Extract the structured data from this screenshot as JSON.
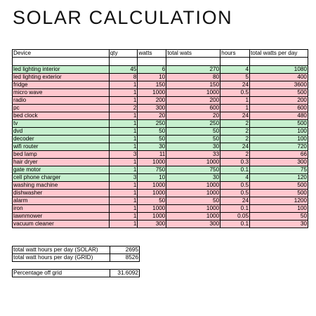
{
  "title": "SOLAR CALCULATION",
  "table": {
    "headers": {
      "device": "Device",
      "qty": "qty",
      "watts": "watts",
      "total_wats": "total wats",
      "hours": "hours",
      "total_watts_per_day": "total watts per day"
    },
    "rows": [
      {
        "device": "led lighting interior",
        "qty": "45",
        "watts": "6",
        "total": "270",
        "hours": "4",
        "per_day": "1080",
        "status": "green"
      },
      {
        "device": "led lighting exterior",
        "qty": "8",
        "watts": "10",
        "total": "80",
        "hours": "5",
        "per_day": "400",
        "status": "red"
      },
      {
        "device": "fridge",
        "qty": "1",
        "watts": "150",
        "total": "150",
        "hours": "24",
        "per_day": "3600",
        "status": "red"
      },
      {
        "device": "micro wave",
        "qty": "1",
        "watts": "1000",
        "total": "1000",
        "hours": "0.5",
        "per_day": "500",
        "status": "red"
      },
      {
        "device": "radio",
        "qty": "1",
        "watts": "200",
        "total": "200",
        "hours": "1",
        "per_day": "200",
        "status": "red"
      },
      {
        "device": "pc",
        "qty": "2",
        "watts": "300",
        "total": "600",
        "hours": "1",
        "per_day": "600",
        "status": "red"
      },
      {
        "device": "bed clock",
        "qty": "1",
        "watts": "20",
        "total": "20",
        "hours": "24",
        "per_day": "480",
        "status": "red"
      },
      {
        "device": "tv",
        "qty": "1",
        "watts": "250",
        "total": "250",
        "hours": "2",
        "per_day": "500",
        "status": "green"
      },
      {
        "device": "dvd",
        "qty": "1",
        "watts": "50",
        "total": "50",
        "hours": "2",
        "per_day": "100",
        "status": "green"
      },
      {
        "device": "decoder",
        "qty": "1",
        "watts": "50",
        "total": "50",
        "hours": "2",
        "per_day": "100",
        "status": "green"
      },
      {
        "device": "wifi router",
        "qty": "1",
        "watts": "30",
        "total": "30",
        "hours": "24",
        "per_day": "720",
        "status": "green"
      },
      {
        "device": "bed lamp",
        "qty": "3",
        "watts": "11",
        "total": "33",
        "hours": "2",
        "per_day": "66",
        "status": "red"
      },
      {
        "device": "hair dryer",
        "qty": "1",
        "watts": "1000",
        "total": "1000",
        "hours": "0.3",
        "per_day": "300",
        "status": "red"
      },
      {
        "device": "gate motor",
        "qty": "1",
        "watts": "750",
        "total": "750",
        "hours": "0.1",
        "per_day": "75",
        "status": "green"
      },
      {
        "device": "cell phone charger",
        "qty": "3",
        "watts": "10",
        "total": "30",
        "hours": "4",
        "per_day": "120",
        "status": "green"
      },
      {
        "device": "washing machine",
        "qty": "1",
        "watts": "1000",
        "total": "1000",
        "hours": "0.5",
        "per_day": "500",
        "status": "red"
      },
      {
        "device": "dishwasher",
        "qty": "1",
        "watts": "1000",
        "total": "1000",
        "hours": "0.5",
        "per_day": "500",
        "status": "red"
      },
      {
        "device": "alarm",
        "qty": "1",
        "watts": "50",
        "total": "50",
        "hours": "24",
        "per_day": "1200",
        "status": "red"
      },
      {
        "device": "iron",
        "qty": "1",
        "watts": "1000",
        "total": "1000",
        "hours": "0.1",
        "per_day": "100",
        "status": "red"
      },
      {
        "device": "lawnmower",
        "qty": "1",
        "watts": "1000",
        "total": "1000",
        "hours": "0.05",
        "per_day": "50",
        "status": "red"
      },
      {
        "device": "vacuum cleaner",
        "qty": "1",
        "watts": "300",
        "total": "300",
        "hours": "0.1",
        "per_day": "30",
        "status": "red"
      }
    ]
  },
  "summary": {
    "solar_label": "total watt hours per day (SOLAR)",
    "solar_value": "2695",
    "grid_label": "total watt hours per day (GRID)",
    "grid_value": "8526",
    "percentage_label": "Percentage off grid",
    "percentage_value": "31.6092"
  },
  "colors": {
    "green": "#c6efce",
    "red": "#ffc7ce"
  }
}
